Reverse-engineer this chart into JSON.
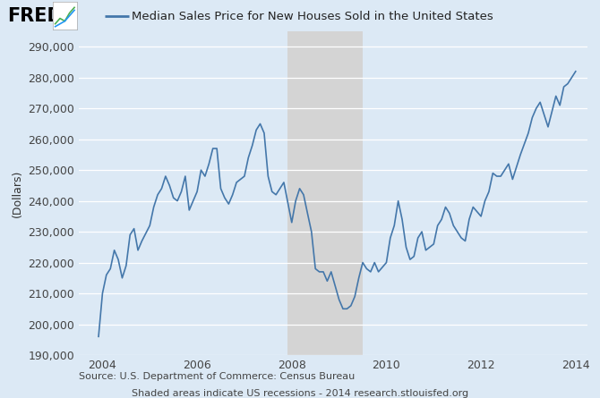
{
  "title": "Median Sales Price for New Houses Sold in the United States",
  "ylabel": "(Dollars)",
  "source_text": "Source: U.S. Department of Commerce: Census Bureau",
  "shaded_text": "Shaded areas indicate US recessions - 2014 research.stlouisfed.org",
  "bg_color": "#dce9f5",
  "line_color": "#4477aa",
  "recession_color": "#d4d4d4",
  "recession_alpha": 1.0,
  "recession_start": 2007.917,
  "recession_end": 2009.5,
  "ylim": [
    190000,
    295000
  ],
  "yticks": [
    190000,
    200000,
    210000,
    220000,
    230000,
    240000,
    250000,
    260000,
    270000,
    280000,
    290000
  ],
  "xlim": [
    2003.5,
    2014.25
  ],
  "xtick_years": [
    2004,
    2006,
    2008,
    2010,
    2012,
    2014
  ],
  "data_x": [
    2003.917,
    2004.0,
    2004.083,
    2004.167,
    2004.25,
    2004.333,
    2004.417,
    2004.5,
    2004.583,
    2004.667,
    2004.75,
    2004.833,
    2005.0,
    2005.083,
    2005.167,
    2005.25,
    2005.333,
    2005.417,
    2005.5,
    2005.583,
    2005.667,
    2005.75,
    2005.833,
    2006.0,
    2006.083,
    2006.167,
    2006.25,
    2006.333,
    2006.417,
    2006.5,
    2006.583,
    2006.667,
    2006.75,
    2006.833,
    2007.0,
    2007.083,
    2007.167,
    2007.25,
    2007.333,
    2007.417,
    2007.5,
    2007.583,
    2007.667,
    2007.75,
    2007.833,
    2008.0,
    2008.083,
    2008.167,
    2008.25,
    2008.333,
    2008.417,
    2008.5,
    2008.583,
    2008.667,
    2008.75,
    2008.833,
    2009.0,
    2009.083,
    2009.167,
    2009.25,
    2009.333,
    2009.417,
    2009.5,
    2009.583,
    2009.667,
    2009.75,
    2009.833,
    2010.0,
    2010.083,
    2010.167,
    2010.25,
    2010.333,
    2010.417,
    2010.5,
    2010.583,
    2010.667,
    2010.75,
    2010.833,
    2011.0,
    2011.083,
    2011.167,
    2011.25,
    2011.333,
    2011.417,
    2011.5,
    2011.583,
    2011.667,
    2011.75,
    2011.833,
    2012.0,
    2012.083,
    2012.167,
    2012.25,
    2012.333,
    2012.417,
    2012.5,
    2012.583,
    2012.667,
    2012.75,
    2012.833,
    2013.0,
    2013.083,
    2013.167,
    2013.25,
    2013.333,
    2013.417,
    2013.5,
    2013.583,
    2013.667,
    2013.75,
    2013.833,
    2014.0
  ],
  "data_y": [
    196000,
    210000,
    216000,
    218000,
    224000,
    221000,
    215000,
    219000,
    229000,
    231000,
    224000,
    227000,
    232000,
    238000,
    242000,
    244000,
    248000,
    245000,
    241000,
    240000,
    243000,
    248000,
    237000,
    243000,
    250000,
    248000,
    252000,
    257000,
    257000,
    244000,
    241000,
    239000,
    242000,
    246000,
    248000,
    254000,
    258000,
    263000,
    265000,
    262000,
    248000,
    243000,
    242000,
    244000,
    246000,
    233000,
    240000,
    244000,
    242000,
    236000,
    230000,
    218000,
    217000,
    217000,
    214000,
    217000,
    208000,
    205000,
    205000,
    206000,
    209000,
    215000,
    220000,
    218000,
    217000,
    220000,
    217000,
    220000,
    228000,
    232000,
    240000,
    234000,
    225000,
    221000,
    222000,
    228000,
    230000,
    224000,
    226000,
    232000,
    234000,
    238000,
    236000,
    232000,
    230000,
    228000,
    227000,
    234000,
    238000,
    235000,
    240000,
    243000,
    249000,
    248000,
    248000,
    250000,
    252000,
    247000,
    251000,
    255000,
    262000,
    267000,
    270000,
    272000,
    268000,
    264000,
    269000,
    274000,
    271000,
    277000,
    278000,
    282000
  ]
}
